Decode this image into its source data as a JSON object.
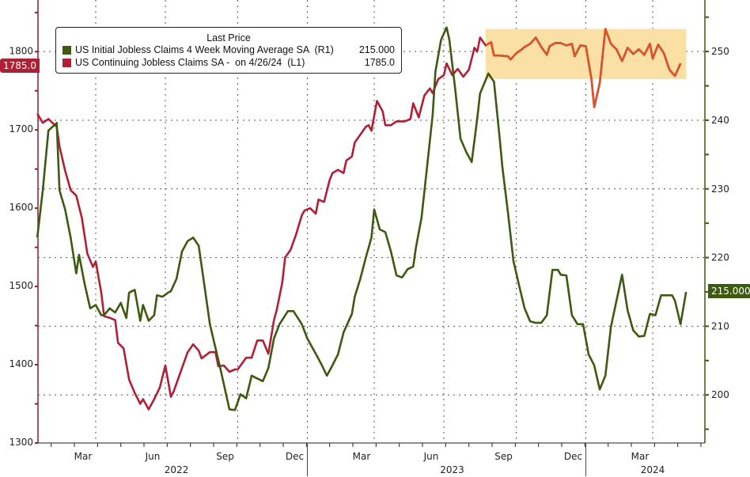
{
  "chart_data": {
    "type": "line",
    "title": "",
    "legend": {
      "title": "Last Price",
      "placement": "top-left",
      "entries": [
        {
          "label": "US Initial Jobless Claims 4 Week Moving Average SA  (R1)",
          "value": "215.000",
          "color": "#3d5a10"
        },
        {
          "label": "US Continuing Jobless Claims SA -  on 4/26/24  (L1)",
          "value": "1785.0",
          "color": "#b11f35"
        }
      ]
    },
    "left_axis": {
      "range": [
        1300,
        1866
      ],
      "ticks": [
        1300,
        1400,
        1500,
        1600,
        1700,
        1800
      ],
      "tick_labels": [
        "1300",
        "1400",
        "1500",
        "1600",
        "1700",
        "1800"
      ],
      "color": "#8c1f2e"
    },
    "right_axis": {
      "range": [
        193,
        257.5
      ],
      "ticks": [
        200,
        210,
        220,
        230,
        240,
        250
      ],
      "tick_labels": [
        "200",
        "210",
        "220",
        "230",
        "240",
        "250"
      ],
      "color": "#3d5a10"
    },
    "x_axis": {
      "unit": "fractional year",
      "range": [
        2021.95,
        2024.35
      ],
      "month_ticks": [
        {
          "x": 2022.16,
          "label": "Mar"
        },
        {
          "x": 2022.41,
          "label": "Jun"
        },
        {
          "x": 2022.67,
          "label": "Sep"
        },
        {
          "x": 2022.92,
          "label": "Dec"
        },
        {
          "x": 2023.16,
          "label": "Mar"
        },
        {
          "x": 2023.41,
          "label": "Jun"
        },
        {
          "x": 2023.67,
          "label": "Sep"
        },
        {
          "x": 2023.92,
          "label": "Dec"
        },
        {
          "x": 2024.16,
          "label": "Mar"
        }
      ],
      "years": [
        {
          "x": 2022.45,
          "label": "2022"
        },
        {
          "x": 2023.44,
          "label": "2023"
        },
        {
          "x": 2024.16,
          "label": "2024"
        }
      ]
    },
    "grid": true,
    "last_value_tags": {
      "left": "1785.0",
      "right": "215.000"
    },
    "highlight": {
      "x": [
        2023.56,
        2024.28
      ],
      "y_left": [
        1765,
        1829
      ],
      "color": "#fbe0a6"
    },
    "series": [
      {
        "name": "US Continuing Jobless Claims SA",
        "axis": "left",
        "color": "#b11f35",
        "highlight_color": "#d9532b",
        "x": [
          2021.95,
          2021.97,
          2021.99,
          2022.02,
          2022.03,
          2022.05,
          2022.07,
          2022.09,
          2022.11,
          2022.13,
          2022.15,
          2022.16,
          2022.18,
          2022.19,
          2022.21,
          2022.23,
          2022.24,
          2022.26,
          2022.28,
          2022.3,
          2022.32,
          2022.33,
          2022.35,
          2022.37,
          2022.39,
          2022.41,
          2022.43,
          2022.44,
          2022.46,
          2022.49,
          2022.51,
          2022.53,
          2022.54,
          2022.57,
          2022.59,
          2022.6,
          2022.62,
          2022.64,
          2022.66,
          2022.67,
          2022.7,
          2022.72,
          2022.74,
          2022.76,
          2022.78,
          2022.8,
          2022.81,
          2022.83,
          2022.84,
          2022.86,
          2022.88,
          2022.9,
          2022.91,
          2022.93,
          2022.95,
          2022.96,
          2022.98,
          2023.0,
          2023.01,
          2023.03,
          2023.05,
          2023.06,
          2023.08,
          2023.09,
          2023.11,
          2023.13,
          2023.14,
          2023.15,
          2023.17,
          2023.19,
          2023.2,
          2023.22,
          2023.24,
          2023.26,
          2023.27,
          2023.29,
          2023.3,
          2023.32,
          2023.34,
          2023.36,
          2023.37,
          2023.39,
          2023.41,
          2023.42,
          2023.44,
          2023.46,
          2023.48,
          2023.5,
          2023.52,
          2023.53,
          2023.54,
          2023.56,
          2023.58,
          2023.59,
          2023.61,
          2023.64,
          2023.65,
          2023.67,
          2023.69,
          2023.7,
          2023.72,
          2023.74,
          2023.76,
          2023.78,
          2023.79,
          2023.81,
          2023.83,
          2023.85,
          2023.87,
          2023.88,
          2023.9,
          2023.92,
          2023.94,
          2023.95,
          2023.97,
          2023.99,
          2024.01,
          2024.03,
          2024.05,
          2024.07,
          2024.09,
          2024.11,
          2024.13,
          2024.15,
          2024.16,
          2024.18,
          2024.2,
          2024.22,
          2024.24,
          2024.26
        ],
        "values": [
          1721,
          1709,
          1714,
          1704,
          1679,
          1648,
          1623,
          1616,
          1588,
          1542,
          1525,
          1532,
          1492,
          1462,
          1460,
          1457,
          1428,
          1421,
          1381,
          1364,
          1350,
          1356,
          1343,
          1356,
          1371,
          1399,
          1359,
          1366,
          1386,
          1416,
          1426,
          1418,
          1408,
          1416,
          1416,
          1398,
          1399,
          1391,
          1394,
          1394,
          1409,
          1409,
          1431,
          1431,
          1414,
          1457,
          1470,
          1505,
          1537,
          1547,
          1567,
          1591,
          1597,
          1600,
          1593,
          1611,
          1608,
          1636,
          1645,
          1649,
          1645,
          1661,
          1666,
          1684,
          1694,
          1704,
          1706,
          1699,
          1737,
          1724,
          1706,
          1706,
          1711,
          1711,
          1711,
          1714,
          1734,
          1716,
          1744,
          1753,
          1747,
          1765,
          1770,
          1785,
          1770,
          1778,
          1768,
          1777,
          1805,
          1800,
          1818,
          1808,
          1812,
          1795,
          1795,
          1794,
          1790,
          1798,
          1803,
          1806,
          1810,
          1818,
          1806,
          1796,
          1807,
          1811,
          1811,
          1808,
          1810,
          1794,
          1808,
          1807,
          1765,
          1729,
          1760,
          1829,
          1810,
          1803,
          1788,
          1805,
          1797,
          1803,
          1796,
          1810,
          1791,
          1809,
          1798,
          1777,
          1769,
          1785
        ]
      },
      {
        "name": "US Initial Jobless Claims 4 Week Moving Average SA",
        "axis": "right",
        "color": "#3d5a10",
        "x": [
          2021.95,
          2021.97,
          2021.99,
          2022.02,
          2022.03,
          2022.05,
          2022.07,
          2022.09,
          2022.1,
          2022.12,
          2022.14,
          2022.16,
          2022.18,
          2022.19,
          2022.21,
          2022.23,
          2022.25,
          2022.27,
          2022.28,
          2022.3,
          2022.32,
          2022.33,
          2022.35,
          2022.37,
          2022.38,
          2022.4,
          2022.42,
          2022.43,
          2022.45,
          2022.47,
          2022.49,
          2022.51,
          2022.53,
          2022.55,
          2022.57,
          2022.61,
          2022.64,
          2022.66,
          2022.68,
          2022.7,
          2022.72,
          2022.74,
          2022.76,
          2022.78,
          2022.8,
          2022.82,
          2022.85,
          2022.87,
          2022.9,
          2022.92,
          2022.95,
          2022.97,
          2022.99,
          2023.01,
          2023.03,
          2023.05,
          2023.08,
          2023.09,
          2023.11,
          2023.13,
          2023.15,
          2023.16,
          2023.18,
          2023.2,
          2023.22,
          2023.24,
          2023.26,
          2023.28,
          2023.3,
          2023.31,
          2023.33,
          2023.35,
          2023.37,
          2023.38,
          2023.4,
          2023.42,
          2023.43,
          2023.45,
          2023.47,
          2023.49,
          2023.51,
          2023.53,
          2023.54,
          2023.57,
          2023.59,
          2023.61,
          2023.62,
          2023.64,
          2023.66,
          2023.68,
          2023.7,
          2023.72,
          2023.74,
          2023.76,
          2023.78,
          2023.8,
          2023.82,
          2023.83,
          2023.85,
          2023.87,
          2023.89,
          2023.91,
          2023.93,
          2023.95,
          2023.97,
          2023.99,
          2024.01,
          2024.03,
          2024.05,
          2024.07,
          2024.09,
          2024.11,
          2024.13,
          2024.15,
          2024.17,
          2024.19,
          2024.23,
          2024.24,
          2024.26,
          2024.28
        ],
        "values": [
          222.9,
          229.8,
          238.5,
          239.6,
          229.8,
          227.0,
          222.9,
          217.7,
          220.4,
          216.2,
          212.6,
          213.1,
          211.6,
          211.6,
          212.6,
          212.0,
          213.4,
          211.2,
          214.9,
          215.3,
          210.8,
          213.1,
          210.8,
          211.6,
          214.5,
          214.3,
          214.9,
          215.1,
          216.9,
          220.9,
          222.4,
          222.9,
          221.7,
          216.0,
          210.3,
          203.4,
          197.9,
          197.8,
          200.1,
          199.5,
          202.8,
          202.4,
          202.0,
          203.9,
          208.2,
          210.3,
          212.2,
          212.2,
          210.3,
          208.2,
          206.0,
          204.5,
          202.8,
          204.3,
          205.9,
          209.1,
          211.8,
          214.3,
          216.9,
          220.0,
          222.9,
          227.0,
          224.1,
          223.7,
          220.9,
          217.4,
          217.1,
          218.3,
          218.7,
          221.5,
          225.8,
          233.3,
          240.8,
          247.1,
          251.7,
          253.5,
          251.7,
          244.8,
          237.3,
          235.4,
          233.9,
          240.2,
          243.9,
          246.8,
          245.6,
          237.6,
          233.3,
          226.6,
          219.5,
          216.0,
          212.6,
          210.7,
          210.5,
          210.5,
          211.6,
          218.2,
          218.2,
          217.5,
          217.4,
          211.6,
          210.3,
          210.3,
          205.9,
          204.3,
          200.8,
          202.8,
          209.9,
          213.7,
          217.5,
          212.3,
          209.4,
          208.5,
          208.6,
          211.8,
          211.6,
          214.5,
          214.5,
          213.7,
          210.3,
          215.0
        ]
      }
    ]
  }
}
